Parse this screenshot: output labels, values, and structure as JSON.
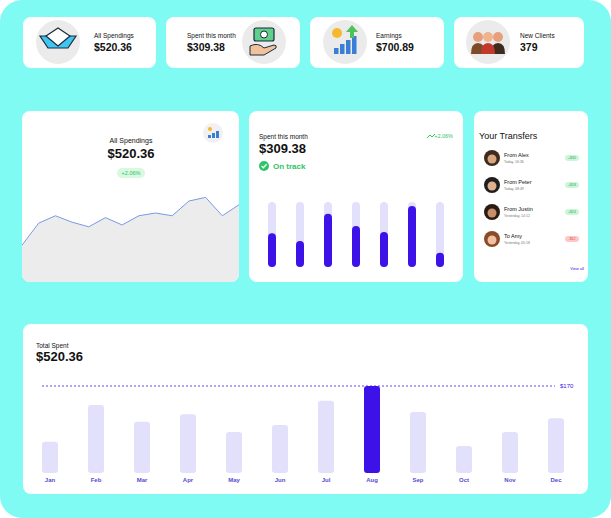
{
  "cards": [
    {
      "label": "All Spendings",
      "value": "$520.36"
    },
    {
      "label": "Spent this month",
      "value": "$309.38"
    },
    {
      "label": "Earnings",
      "value": "$700.89"
    },
    {
      "label": "New Clients",
      "value": "379"
    }
  ],
  "chart_data": [
    {
      "type": "area",
      "title": "All Spendings",
      "subtitle": "$520.36",
      "annotations": [
        "+2.06%"
      ],
      "categories": [
        null,
        null,
        null,
        null,
        null,
        null,
        null,
        null,
        null,
        null,
        null,
        null,
        null,
        null
      ],
      "values": [
        40,
        64,
        72,
        65,
        60,
        70,
        62,
        72,
        75,
        72,
        88,
        92,
        72,
        84
      ],
      "color": "#7a98e6",
      "ylim": [
        0,
        100
      ],
      "tick_labels": false
    },
    {
      "type": "bar",
      "title": "Spent this month",
      "subtitle": "$309.38",
      "annotations": [
        "On track",
        "+2.06%"
      ],
      "categories": [
        null,
        null,
        null,
        null,
        null,
        null,
        null
      ],
      "values": [
        52,
        40,
        82,
        63,
        54,
        94,
        22
      ],
      "color": "#3d12e8",
      "ylim": [
        0,
        100
      ],
      "tick_labels": false
    },
    {
      "type": "bar",
      "title": "Total Spent",
      "subtitle": "$520.36",
      "categories": [
        "Jan",
        "Feb",
        "Mar",
        "Apr",
        "May",
        "Jun",
        "Jul",
        "Aug",
        "Sep",
        "Oct",
        "Nov",
        "Dec"
      ],
      "values": [
        61,
        133,
        100,
        115,
        80,
        94,
        141,
        170,
        119,
        53,
        80,
        107
      ],
      "colors": [
        "#e3e0fc",
        "#e3e0fc",
        "#e3e0fc",
        "#e3e0fc",
        "#e3e0fc",
        "#e3e0fc",
        "#e3e0fc",
        "#3d12e8",
        "#e3e0fc",
        "#e3e0fc",
        "#e3e0fc",
        "#e3e0fc"
      ],
      "ylim": [
        0,
        170
      ],
      "annotations": [
        {
          "value": 170,
          "label": "$170"
        }
      ],
      "tick_labels": "x"
    }
  ],
  "transfers": {
    "title": "Your Transfers",
    "items": [
      {
        "name": "From Alex",
        "time": "Today, 16:36",
        "amount": "+$30"
      },
      {
        "name": "From Peter",
        "time": "Today, 08:49",
        "amount": "+$18"
      },
      {
        "name": "From Justin",
        "time": "Yesterday, 14:12",
        "amount": "+$24"
      },
      {
        "name": "To Amy",
        "time": "Yesterday, 05:18",
        "amount": "-$12"
      }
    ],
    "link": "View all"
  }
}
